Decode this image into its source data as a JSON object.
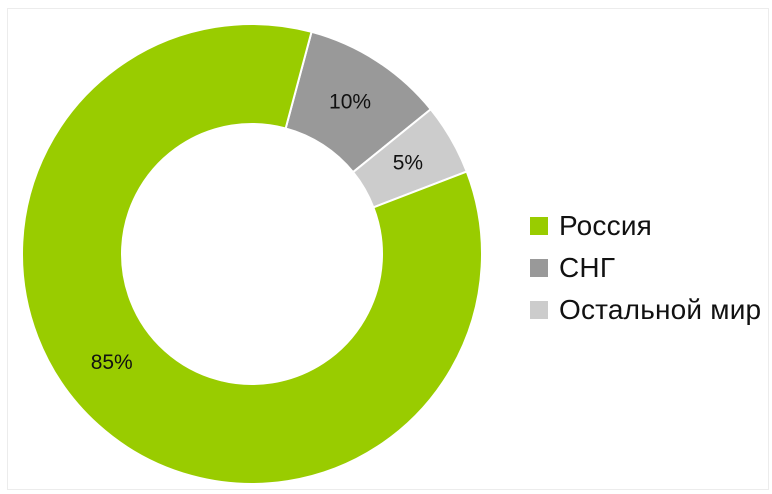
{
  "chart_data": {
    "type": "pie",
    "variant": "donut",
    "categories": [
      "Россия",
      "СНГ",
      "Остальной мир"
    ],
    "values": [
      85,
      10,
      5
    ],
    "labels": [
      "85%",
      "10%",
      "5%"
    ],
    "colors": [
      "#99cc00",
      "#999999",
      "#cccccc"
    ],
    "legend_position": "right",
    "title": ""
  },
  "legend": {
    "items": [
      {
        "label": "Россия",
        "color": "#99cc00"
      },
      {
        "label": "СНГ",
        "color": "#999999"
      },
      {
        "label": "Остальной мир",
        "color": "#cccccc"
      }
    ]
  }
}
